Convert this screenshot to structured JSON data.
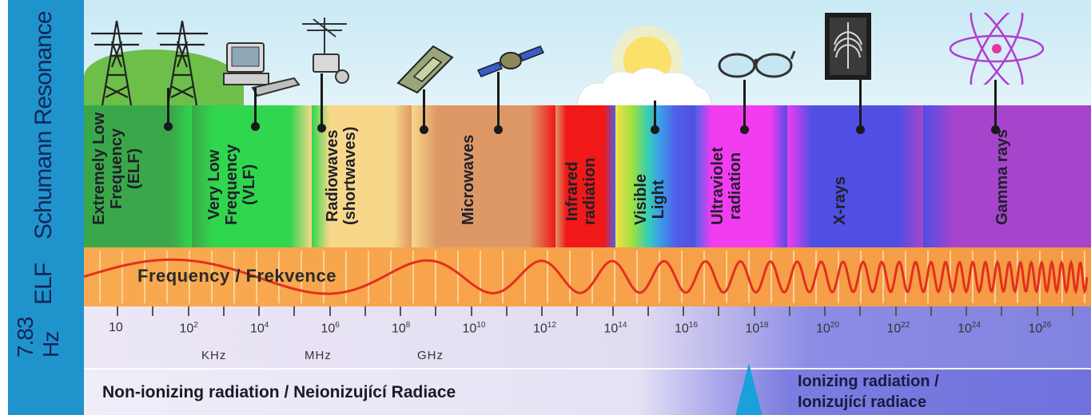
{
  "sidebar": {
    "schumann_label": "Schumann Resonance",
    "elf_label": "ELF",
    "freq_value": "7.83",
    "freq_unit": "Hz",
    "color": "#1f94cc"
  },
  "bands": [
    {
      "label": "Extremely Low\nFrequency\n(ELF)",
      "color": "#3aa84a"
    },
    {
      "label": "Very Low\nFrequency\n(VLF)",
      "color": "#2fd64e"
    },
    {
      "label": "Radiowaves\n(shortwaves)",
      "color": "#f7d88a"
    },
    {
      "label": "Microwaves",
      "color": "#de9866"
    },
    {
      "label": "Infrared\nradiation",
      "color": "#f01818"
    },
    {
      "label": "Visible\nLight",
      "color": "#4f60e8"
    },
    {
      "label": "Ultraviolet\nradiation",
      "color": "#f23cf0"
    },
    {
      "label": "X-rays",
      "color": "#4f4fe4"
    },
    {
      "label": "Gamma rays",
      "color": "#a644cc"
    }
  ],
  "wave": {
    "label": "Frequency / Frekvence",
    "color": "#e2301e"
  },
  "scale": {
    "ticks": [
      {
        "base": "10",
        "exp": ""
      },
      {
        "base": "10",
        "exp": "2"
      },
      {
        "base": "10",
        "exp": "4"
      },
      {
        "base": "10",
        "exp": "6"
      },
      {
        "base": "10",
        "exp": "8"
      },
      {
        "base": "10",
        "exp": "10"
      },
      {
        "base": "10",
        "exp": "12"
      },
      {
        "base": "10",
        "exp": "14"
      },
      {
        "base": "10",
        "exp": "16"
      },
      {
        "base": "10",
        "exp": "18"
      },
      {
        "base": "10",
        "exp": "20"
      },
      {
        "base": "10",
        "exp": "22"
      },
      {
        "base": "10",
        "exp": "24"
      },
      {
        "base": "10",
        "exp": "26"
      }
    ],
    "units": [
      "KHz",
      "MHz",
      "GHz"
    ]
  },
  "bottom": {
    "non_ionizing": "Non-ionizing radiation / Neionizující Radiace",
    "ionizing_line1": "Ionizing radiation /",
    "ionizing_line2": "Ionizující radiace",
    "pointer_color": "#1aa0dc"
  },
  "icons": [
    "power-pylon-icon",
    "power-pylon-icon",
    "computer-icon",
    "radio-antenna-icon",
    "mobile-phone-icon",
    "satellite-icon",
    "sun-icon",
    "sunglasses-icon",
    "xray-film-icon",
    "atom-icon"
  ]
}
